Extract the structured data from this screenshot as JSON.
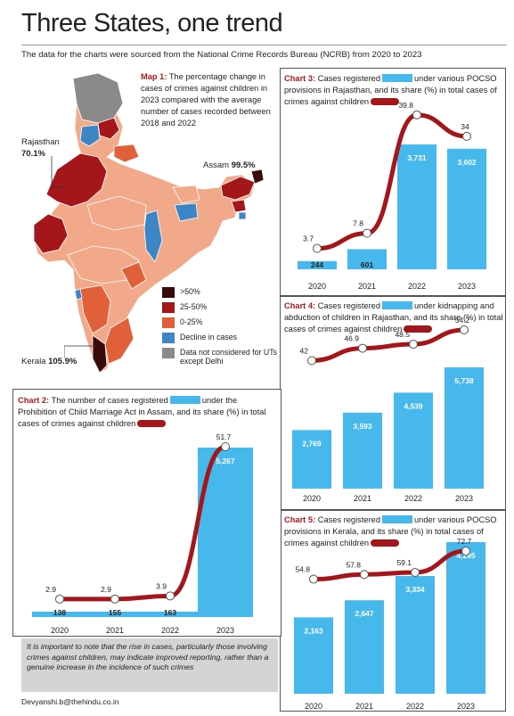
{
  "title": "Three States, one trend",
  "subtitle": "The data for the charts were sourced from the National Crime Records Bureau (NCRB) from 2020 to 2023",
  "map": {
    "label": "Map 1:",
    "description": "The percentage change in cases of crimes against children in 2023 compared with the average number of cases recorded between 2018 and 2022",
    "states": [
      {
        "name": "Rajasthan",
        "value": "70.1%"
      },
      {
        "name": "Assam",
        "value": "99.5%"
      },
      {
        "name": "Kerala",
        "value": "105.9%"
      }
    ],
    "legend": [
      {
        "label": ">50%",
        "color": "#3a0a0a"
      },
      {
        "label": "25-50%",
        "color": "#a4161a"
      },
      {
        "label": "0-25%",
        "color": "#e0603a"
      },
      {
        "label": "Decline in cases",
        "color": "#3d86c6"
      },
      {
        "label": "Data not considered for UTs except Delhi",
        "color": "#8a8a8a"
      }
    ],
    "colors": {
      "light": "#f2a98a",
      "mid": "#e0603a",
      "dark": "#a4161a",
      "darkest": "#3a0a0a",
      "blue": "#3d86c6",
      "grey": "#8a8a8a"
    }
  },
  "chart_data": [
    {
      "id": "chart3",
      "type": "bar",
      "label": "Chart 3:",
      "title_parts": [
        "Cases registered",
        "under various POCSO provisions in Rajasthan, and its share (%) in total cases of crimes against children"
      ],
      "categories": [
        "2020",
        "2021",
        "2022",
        "2023"
      ],
      "series": [
        {
          "name": "Cases registered",
          "values": [
            244,
            601,
            3731,
            3602
          ]
        },
        {
          "name": "Share (%)",
          "values": [
            3.7,
            7.8,
            39.8,
            34
          ]
        }
      ]
    },
    {
      "id": "chart4",
      "type": "bar",
      "label": "Chart 4:",
      "title_parts": [
        "Cases registered",
        "under kidnapping and abduction of children in Rajasthan, and its share (%) in total cases of crimes against children"
      ],
      "categories": [
        "2020",
        "2021",
        "2022",
        "2023"
      ],
      "series": [
        {
          "name": "Cases registered",
          "values": [
            2769,
            3593,
            4539,
            5738
          ]
        },
        {
          "name": "Share (%)",
          "values": [
            42,
            46.9,
            48.5,
            54.2
          ]
        }
      ]
    },
    {
      "id": "chart2",
      "type": "bar",
      "label": "Chart 2:",
      "title_parts": [
        "The number of cases registered",
        "under the Prohibition of Child Marriage Act in Assam, and its share (%) in total cases of crimes against children"
      ],
      "categories": [
        "2020",
        "2021",
        "2022",
        "2023"
      ],
      "series": [
        {
          "name": "Cases registered",
          "values": [
            138,
            155,
            163,
            5267
          ]
        },
        {
          "name": "Share (%)",
          "values": [
            2.9,
            2.9,
            3.9,
            51.7
          ]
        }
      ]
    },
    {
      "id": "chart5",
      "type": "bar",
      "label": "Chart 5:",
      "title_parts": [
        "Cases registered",
        "under various POCSO provisions in Kerala, and its share (%) in total cases of crimes against children"
      ],
      "categories": [
        "2020",
        "2021",
        "2022",
        "2023"
      ],
      "series": [
        {
          "name": "Cases registered",
          "values": [
            2163,
            2647,
            3334,
            4295
          ]
        },
        {
          "name": "Share (%)",
          "values": [
            54.8,
            57.8,
            59.1,
            72.7
          ]
        }
      ]
    }
  ],
  "note": "It is important to note that the rise in cases, particularly those involving crimes against children, may indicate improved reporting, rather than a genuine increase in the incidence of such crimes",
  "credit": "Devyanshi.b@thehindu.co.in",
  "colors": {
    "bar": "#46b8ec",
    "line": "#a4161a"
  }
}
